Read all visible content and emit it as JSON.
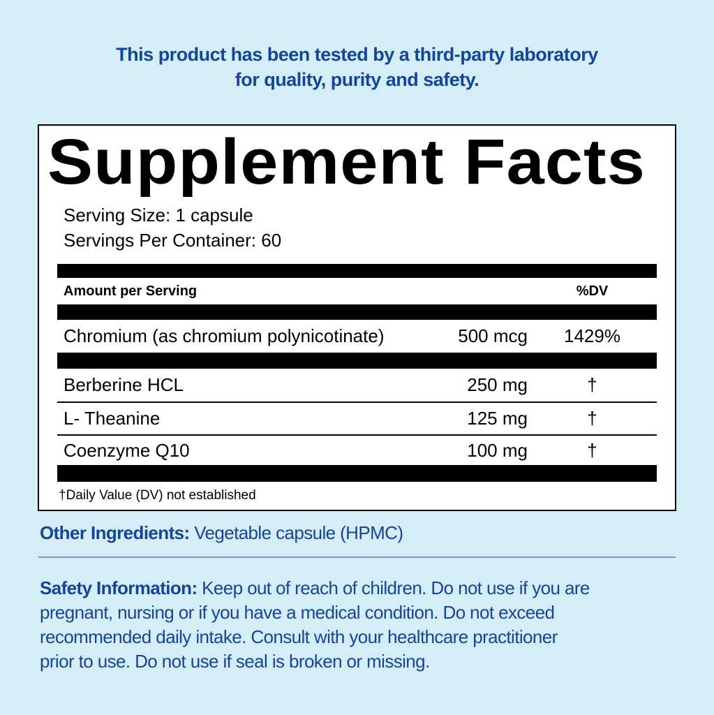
{
  "banner": {
    "lines": [
      "This product has been tested by a third-party laboratory",
      "for quality, purity and safety."
    ]
  },
  "facts": {
    "title": "Supplement Facts",
    "serving_size": "Serving Size: 1 capsule",
    "servings_per_container": "Servings Per Container: 60",
    "columns": {
      "amount_header": "Amount per Serving",
      "dv_header": "%DV"
    },
    "rows": [
      {
        "name": "Chromium (as chromium polynicotinate)",
        "amount": "500 mcg",
        "dv": "1429%"
      },
      {
        "name": "Berberine HCL",
        "amount": "250 mg",
        "dv": "†"
      },
      {
        "name": "L- Theanine",
        "amount": "125 mg",
        "dv": "†"
      },
      {
        "name": "Coenzyme Q10",
        "amount": "100 mg",
        "dv": "†"
      }
    ],
    "footnote": "†Daily Value (DV) not established"
  },
  "other_ingredients": {
    "label": "Other Ingredients:",
    "value": "Vegetable capsule (HPMC)"
  },
  "safety": {
    "label": "Safety Information:",
    "lines": [
      "Keep out of reach of children. Do not use if you are",
      "pregnant, nursing or if you have a medical condition. Do not exceed",
      "recommended daily intake. Consult with your healthcare practitioner",
      "prior to use. Do not use if seal is broken or missing."
    ]
  },
  "colors": {
    "background": "#d5edf6",
    "text_blue": "#154598",
    "panel_ink": "#000000",
    "panel_background": "#ffffff",
    "divider": "#7d9cb8"
  }
}
